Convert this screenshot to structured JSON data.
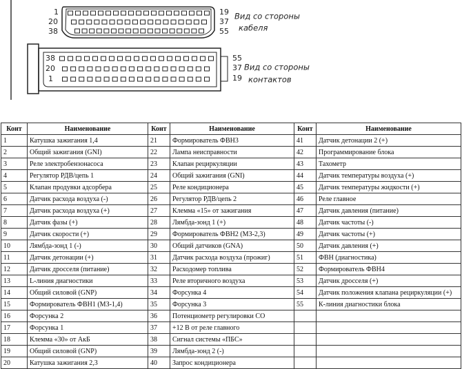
{
  "connectors": [
    {
      "left_labels": [
        "1",
        "20",
        "38"
      ],
      "right_labels": [
        "19",
        "37",
        "55"
      ],
      "caption": [
        "Вид со стороны",
        "кабеля"
      ]
    },
    {
      "left_labels": [
        "38",
        "20",
        "1"
      ],
      "right_labels": [
        "55",
        "37",
        "19"
      ],
      "caption": [
        "Вид со стороны",
        "контактов"
      ]
    }
  ],
  "table": {
    "header": [
      "Конт",
      "Наименование",
      "Конт",
      "Наименование",
      "Конт",
      "Наименование"
    ],
    "rows": [
      [
        "1",
        "Катушка зажигания 1,4",
        "21",
        "Формирователь ФВН3",
        "41",
        "Датчик детонации 2 (+)"
      ],
      [
        "2",
        "Общий зажигания (GNI)",
        "22",
        "Лампа неисправности",
        "42",
        "Программирование блока"
      ],
      [
        "3",
        "Реле электробензонасоса",
        "23",
        "Клапан рециркуляции",
        "43",
        "Тахометр"
      ],
      [
        "4",
        "Регулятор РДВ/цепь 1",
        "24",
        "Общий зажигания (GNI)",
        "44",
        "Датчик температуры воздуха (+)"
      ],
      [
        "5",
        "Клапан продувки адсорбера",
        "25",
        "Реле кондиционера",
        "45",
        "Датчик температуры жидкости (+)"
      ],
      [
        "6",
        "Датчик расхода воздуха (-)",
        "26",
        "Регулятор РДВ/цепь 2",
        "46",
        "Реле главное"
      ],
      [
        "7",
        "Датчик расхода воздуха (+)",
        "27",
        "Клемма «15» от зажигания",
        "47",
        "Датчик давления (питание)"
      ],
      [
        "8",
        "Датчик фазы (+)",
        "28",
        "Лямбда-зонд 1 (+)",
        "48",
        "Датчик частоты (-)"
      ],
      [
        "9",
        "Датчик скорости (+)",
        "29",
        "Формирователь ФВН2 (МЗ-2,3)",
        "49",
        "Датчик частоты (+)"
      ],
      [
        "10",
        "Лямбда-зонд 1 (-)",
        "30",
        "Общий датчиков (GNA)",
        "50",
        "Датчик давления (+)"
      ],
      [
        "11",
        "Датчик детонации (+)",
        "31",
        "Датчик расхода воздуха (прожиг)",
        "51",
        "ФВН (диагностика)"
      ],
      [
        "12",
        "Датчик дросселя (питание)",
        "32",
        "Расходомер топлива",
        "52",
        "Формирователь ФВН4"
      ],
      [
        "13",
        "L-линия диагностики",
        "33",
        "Реле вторичного воздуха",
        "53",
        "Датчик дросселя (+)"
      ],
      [
        "14",
        "Общий силовой (GNP)",
        "34",
        "Форсунка 4",
        "54",
        "Датчик положения клапана рециркуляции (+)"
      ],
      [
        "15",
        "Формирователь ФВН1 (МЗ-1,4)",
        "35",
        "Форсунка 3",
        "55",
        "К-линия диагностики блока"
      ],
      [
        "16",
        "Форсунка 2",
        "36",
        "Потенциометр регулировки СО",
        null,
        null
      ],
      [
        "17",
        "Форсунка 1",
        "37",
        "+12 В от реле главного",
        null,
        null
      ],
      [
        "18",
        "Клемма «30» от АкБ",
        "38",
        "Сигнал системы «ПБС»",
        null,
        null
      ],
      [
        "19",
        "Общий силовой (GNP)",
        "39",
        "Лямбда-зонд 2 (-)",
        null,
        null
      ],
      [
        "20",
        "Катушка зажигания 2,3",
        "40",
        "Запрос кондиционера",
        null,
        null
      ]
    ]
  }
}
